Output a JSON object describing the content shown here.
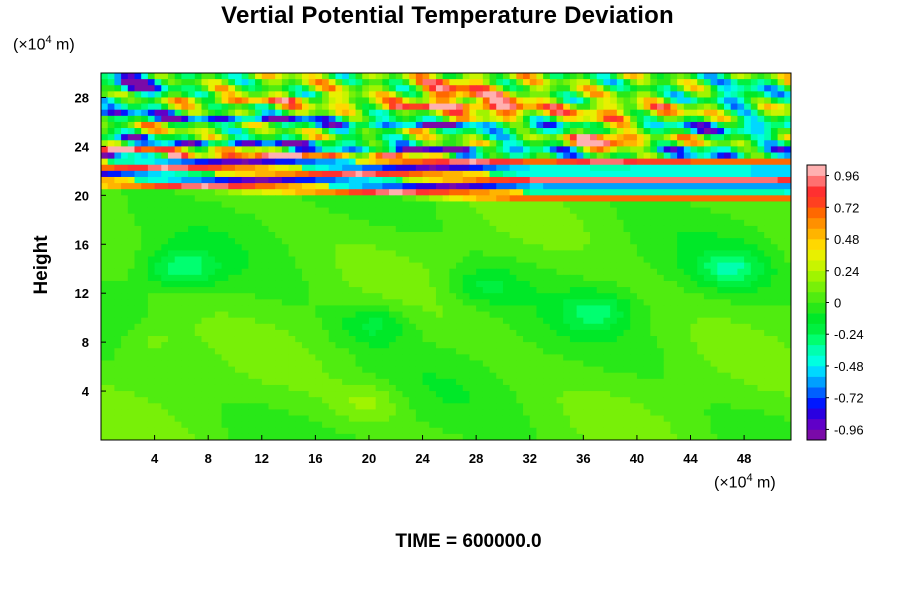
{
  "title": "Vertial Potential Temperature Deviation",
  "time_label": "TIME = 600000.0",
  "y_unit": {
    "prefix": "(×10",
    "exp": "4",
    "suffix": " m)"
  },
  "x_unit": {
    "prefix": "(×10",
    "exp": "4",
    "suffix": " m)"
  },
  "chart_data": {
    "type": "heatmap",
    "title": "Vertial Potential Temperature Deviation",
    "xlabel": "",
    "ylabel": "Height",
    "x_unit": "×10^4 m",
    "y_unit": "×10^4 m",
    "xlim": [
      0,
      51.5
    ],
    "ylim": [
      0,
      30
    ],
    "x_ticks": [
      4,
      8,
      12,
      16,
      20,
      24,
      28,
      32,
      36,
      40,
      44,
      48
    ],
    "y_ticks": [
      4,
      8,
      12,
      16,
      20,
      24,
      28
    ],
    "colorbar": {
      "min": -1.04,
      "max": 1.04,
      "levels": 26,
      "tick_values": [
        0.96,
        0.72,
        0.48,
        0.24,
        0,
        -0.24,
        -0.48,
        -0.72,
        -0.96
      ],
      "tick_labels": [
        "0.96",
        "0.72",
        "0.48",
        "0.24",
        "0",
        "-0.24",
        "-0.48",
        "-0.72",
        "-0.96"
      ],
      "colors": [
        "#7a0aa8",
        "#6000c8",
        "#2a00e0",
        "#0018ff",
        "#0060ff",
        "#00a0ff",
        "#00d8ff",
        "#00ffe0",
        "#00ffb0",
        "#00ff70",
        "#00f040",
        "#00e828",
        "#28e818",
        "#50ec10",
        "#78f008",
        "#a0f400",
        "#c8f400",
        "#e8f000",
        "#ffd800",
        "#ffb400",
        "#ff9000",
        "#ff6800",
        "#ff4020",
        "#ff3030",
        "#ff7070",
        "#ffb0b0"
      ]
    },
    "field": {
      "background": 0.02,
      "bands": [
        {
          "y": 19.9,
          "value": 0.98
        },
        {
          "y": 20.55,
          "value": -0.98
        },
        {
          "y": 21.3,
          "value": 0.98
        },
        {
          "y": 22.0,
          "value": -0.98
        },
        {
          "y": 22.6,
          "value": 0.98
        },
        {
          "y": 23.5,
          "value": -0.85
        },
        {
          "y": 25.5,
          "value": -0.9
        },
        {
          "y": 27.0,
          "value": 0.55
        }
      ],
      "features": [
        {
          "x": 2.5,
          "y": 28.8,
          "value": -0.85
        },
        {
          "x": 26.0,
          "y": 28.5,
          "value": 0.75
        },
        {
          "x": 30.0,
          "y": 27.5,
          "value": 0.6
        },
        {
          "x": 37.5,
          "y": 24.6,
          "value": 0.9
        },
        {
          "x": 48.0,
          "y": 28.0,
          "value": -0.55
        },
        {
          "x": 6.0,
          "y": 14.0,
          "value": -0.3
        },
        {
          "x": 3.5,
          "y": 8.0,
          "value": 0.12
        },
        {
          "x": 20.5,
          "y": 9.5,
          "value": -0.2
        },
        {
          "x": 28.5,
          "y": 12.5,
          "value": -0.18
        },
        {
          "x": 37.0,
          "y": 10.5,
          "value": -0.22
        },
        {
          "x": 47.0,
          "y": 14.0,
          "value": -0.28
        },
        {
          "x": 20.0,
          "y": 3.0,
          "value": 0.15
        }
      ]
    }
  }
}
